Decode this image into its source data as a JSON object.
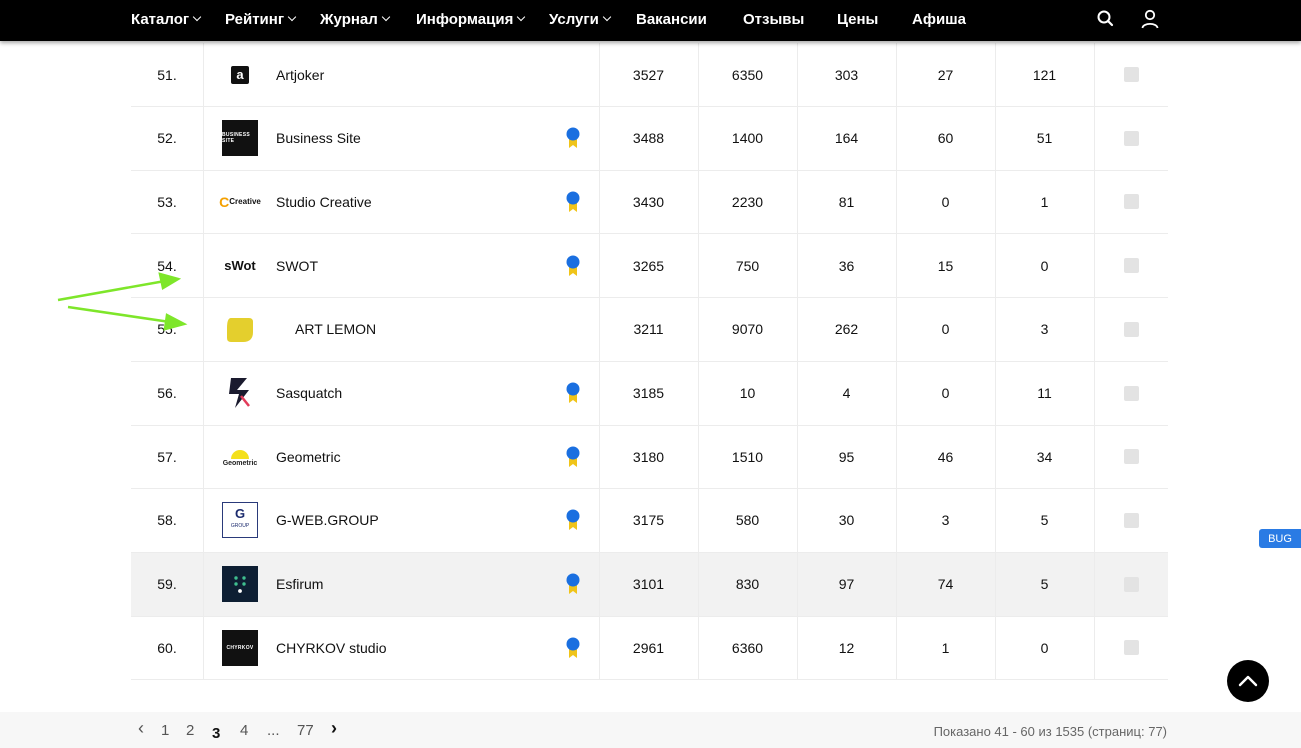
{
  "nav": {
    "items": [
      {
        "label": "Каталог",
        "dropdown": true
      },
      {
        "label": "Рейтинг",
        "dropdown": true
      },
      {
        "label": "Журнал",
        "dropdown": true
      },
      {
        "label": "Информация",
        "dropdown": true
      },
      {
        "label": "Услуги",
        "dropdown": true
      },
      {
        "label": "Вакансии",
        "dropdown": false
      },
      {
        "label": "Отзывы",
        "dropdown": false
      },
      {
        "label": "Цены",
        "dropdown": false
      },
      {
        "label": "Афиша",
        "dropdown": false
      }
    ],
    "icons": [
      "search-icon",
      "user-icon"
    ]
  },
  "rows": [
    {
      "rank": "51.",
      "logo": "a",
      "logo_style": "small",
      "name": "Artjoker",
      "badge": false,
      "v1": "3527",
      "v2": "6350",
      "v3": "303",
      "v4": "27",
      "v5": "121"
    },
    {
      "rank": "52.",
      "logo": "BUSINESS SITE",
      "logo_style": "dark",
      "name": "Business Site",
      "badge": true,
      "v1": "3488",
      "v2": "1400",
      "v3": "164",
      "v4": "60",
      "v5": "51"
    },
    {
      "rank": "53.",
      "logo": "Creative",
      "logo_style": "creative",
      "name": "Studio Creative",
      "badge": true,
      "v1": "3430",
      "v2": "2230",
      "v3": "81",
      "v4": "0",
      "v5": "1"
    },
    {
      "rank": "54.",
      "logo": "sWot",
      "logo_style": "text",
      "name": "SWOT",
      "badge": true,
      "v1": "3265",
      "v2": "750",
      "v3": "36",
      "v4": "15",
      "v5": "0"
    },
    {
      "rank": "55.",
      "logo": "",
      "logo_style": "lemon",
      "name": "ART LEMON",
      "badge": false,
      "indent": true,
      "v1": "3211",
      "v2": "9070",
      "v3": "262",
      "v4": "0",
      "v5": "3"
    },
    {
      "rank": "56.",
      "logo": "",
      "logo_style": "sasquatch",
      "name": "Sasquatch",
      "badge": true,
      "v1": "3185",
      "v2": "10",
      "v3": "4",
      "v4": "0",
      "v5": "11"
    },
    {
      "rank": "57.",
      "logo": "Geometric",
      "logo_style": "geometric",
      "name": "Geometric",
      "badge": true,
      "v1": "3180",
      "v2": "1510",
      "v3": "95",
      "v4": "46",
      "v5": "34"
    },
    {
      "rank": "58.",
      "logo": "G",
      "logo_sub": "GROUP",
      "logo_style": "gweb",
      "name": "G-WEB.GROUP",
      "badge": true,
      "v1": "3175",
      "v2": "580",
      "v3": "30",
      "v4": "3",
      "v5": "5"
    },
    {
      "rank": "59.",
      "logo": "",
      "logo_style": "esfirum",
      "name": "Esfirum",
      "badge": true,
      "highlight": true,
      "v1": "3101",
      "v2": "830",
      "v3": "97",
      "v4": "74",
      "v5": "5"
    },
    {
      "rank": "60.",
      "logo": "CHYRKOV",
      "logo_style": "dark",
      "name": "CHYRKOV studio",
      "badge": true,
      "v1": "2961",
      "v2": "6360",
      "v3": "12",
      "v4": "1",
      "v5": "0"
    }
  ],
  "bug_label": "BUG",
  "pagination": {
    "prev": "‹",
    "pages": [
      "1",
      "2",
      "3",
      "4",
      "...",
      "77"
    ],
    "current": "3",
    "next": "›",
    "info": "Показано 41 - 60 из 1535 (страниц: 77)"
  },
  "colors": {
    "nav_bg": "#000000",
    "badge_blue": "#1a6fe0",
    "badge_ribbon": "#f0c419",
    "arrow_green": "#7ee62a",
    "bug_blue": "#2a7be4",
    "row_highlight": "#f2f2f2"
  }
}
